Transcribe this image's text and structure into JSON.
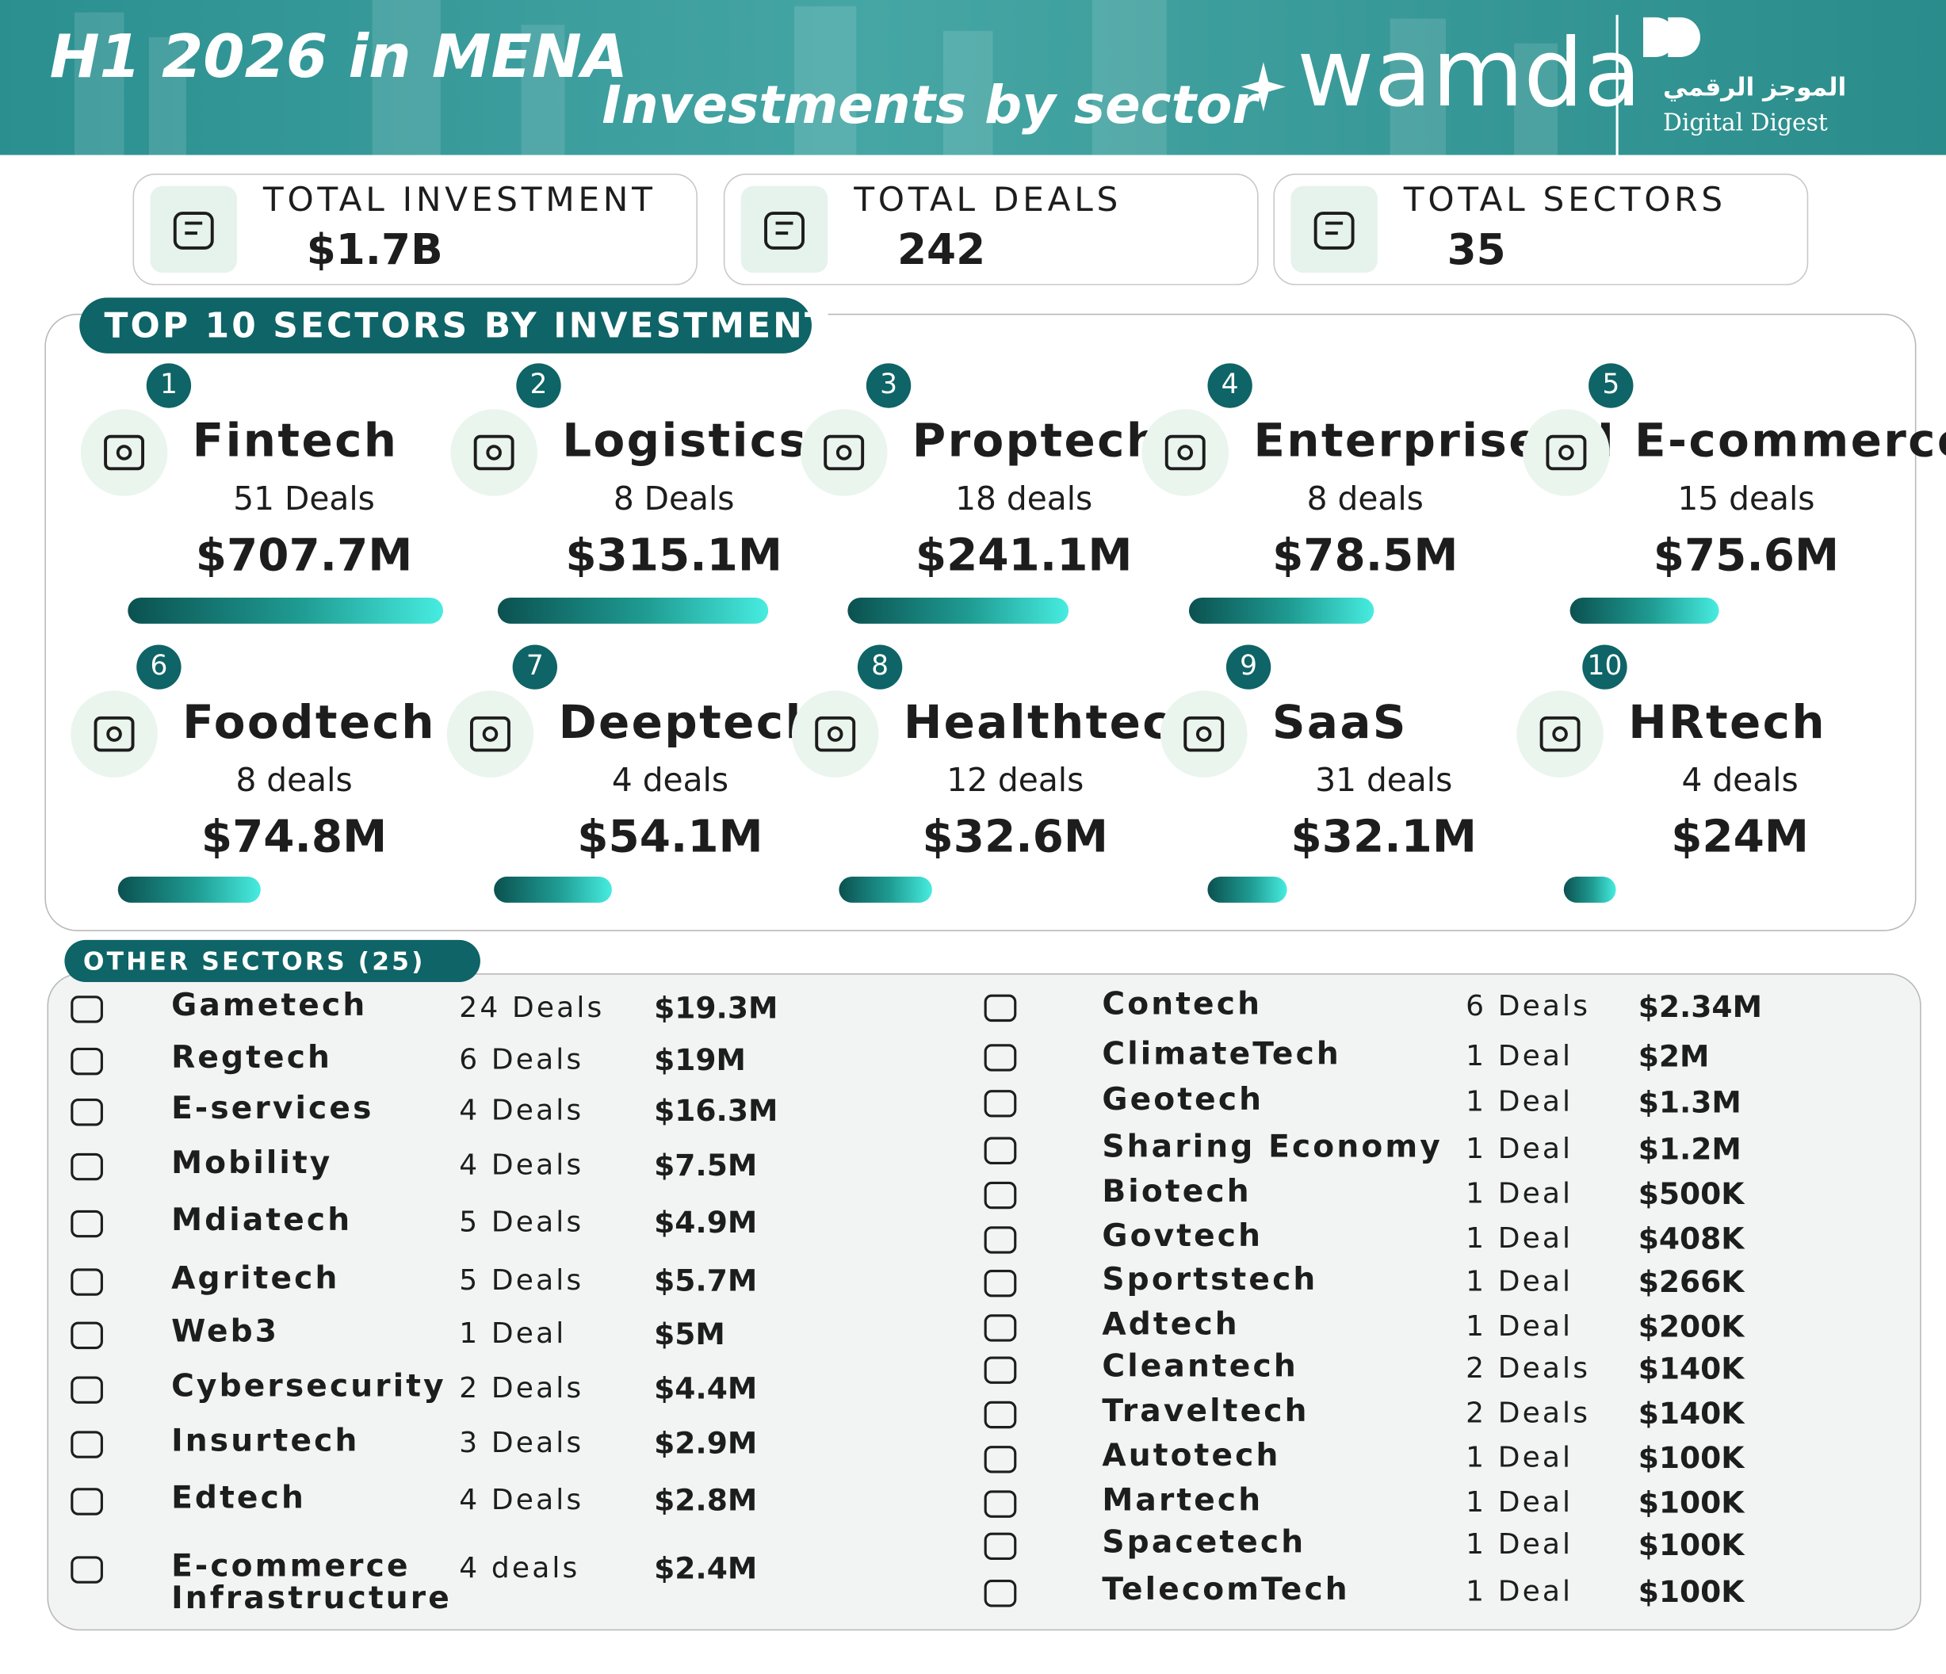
{
  "header": {
    "title": "H1 2026 in MENA",
    "subtitle": "Investments by sector",
    "brand": "wamda",
    "partner_arabic": "الموجز الرقمي",
    "partner": "Digital Digest"
  },
  "kpis": [
    {
      "label": "TOTAL INVESTMENT",
      "value": "$1.7B"
    },
    {
      "label": "TOTAL DEALS",
      "value": 242
    },
    {
      "label": "TOTAL SECTORS",
      "value": 35
    }
  ],
  "top_sectors": {
    "title": "TOP 10 SECTORS BY INVESTMENT",
    "items": [
      {
        "rank": 1,
        "name": "Fintech",
        "deals": "51 Deals",
        "amount": "$707.7M"
      },
      {
        "rank": 2,
        "name": "Logistics",
        "deals": "8 Deals",
        "amount": "$315.1M"
      },
      {
        "rank": 3,
        "name": "Proptech",
        "deals": "18 deals",
        "amount": "$241.1M"
      },
      {
        "rank": 4,
        "name": "Enterprise AI",
        "deals": "8 deals",
        "amount": "$78.5M"
      },
      {
        "rank": 5,
        "name": "E-commerce",
        "deals": "15 deals",
        "amount": "$75.6M"
      },
      {
        "rank": 6,
        "name": "Foodtech",
        "deals": "8 deals",
        "amount": "$74.8M"
      },
      {
        "rank": 7,
        "name": "Deeptech",
        "deals": "4 deals",
        "amount": "$54.1M"
      },
      {
        "rank": 8,
        "name": "Healthtech",
        "deals": "12 deals",
        "amount": "$32.6M"
      },
      {
        "rank": 9,
        "name": "SaaS",
        "deals": "31 deals",
        "amount": "$32.1M"
      },
      {
        "rank": 10,
        "name": "HRtech",
        "deals": "4 deals",
        "amount": "$24M"
      }
    ]
  },
  "other_sectors": {
    "title": "OTHER SECTORS (25)",
    "rows": [
      {
        "name": "Gametech",
        "deals": "24 Deals",
        "amount": "$19.3M"
      },
      {
        "name": "Regtech",
        "deals": "6 Deals",
        "amount": "$19M"
      },
      {
        "name": "E-services",
        "deals": "4 Deals",
        "amount": "$16.3M"
      },
      {
        "name": "Mobility",
        "deals": "4 Deals",
        "amount": "$7.5M"
      },
      {
        "name": "Mdiatech",
        "deals": "5 Deals",
        "amount": "$4.9M"
      },
      {
        "name": "Agritech",
        "deals": "5 Deals",
        "amount": "$5.7M"
      },
      {
        "name": "Web3",
        "deals": "1 Deal",
        "amount": "$5M"
      },
      {
        "name": "Cybersecurity",
        "deals": "2 Deals",
        "amount": "$4.4M"
      },
      {
        "name": "Insurtech",
        "deals": "3 Deals",
        "amount": "$2.9M"
      },
      {
        "name": "Edtech",
        "deals": "4 Deals",
        "amount": "$2.8M"
      },
      {
        "name": "E-commerce Infrastructure",
        "deals": "4 deals",
        "amount": "$2.4M"
      },
      {
        "name": "Contech",
        "deals": "6 Deals",
        "amount": "$2.34M"
      },
      {
        "name": "ClimateTech",
        "deals": "1 Deal",
        "amount": "$2M"
      },
      {
        "name": "Geotech",
        "deals": "1 Deal",
        "amount": "$1.3M"
      },
      {
        "name": "Sharing Economy",
        "deals": "1 Deal",
        "amount": "$1.2M"
      },
      {
        "name": "Biotech",
        "deals": "1 Deal",
        "amount": "$500K"
      },
      {
        "name": "Govtech",
        "deals": "1 Deal",
        "amount": "$408K"
      },
      {
        "name": "Sportstech",
        "deals": "1 Deal",
        "amount": "$266K"
      },
      {
        "name": "Adtech",
        "deals": "1 Deal",
        "amount": "$200K"
      },
      {
        "name": "Cleantech",
        "deals": "2 Deals",
        "amount": "$140K"
      },
      {
        "name": "Traveltech",
        "deals": "2 Deals",
        "amount": "$140K"
      },
      {
        "name": "Autotech",
        "deals": "1 Deal",
        "amount": "$100K"
      },
      {
        "name": "Martech",
        "deals": "1 Deal",
        "amount": "$100K"
      },
      {
        "name": "Spacetech",
        "deals": "1 Deal",
        "amount": "$100K"
      },
      {
        "name": "TelecomTech",
        "deals": "1 Deal",
        "amount": "$100K"
      }
    ]
  }
}
